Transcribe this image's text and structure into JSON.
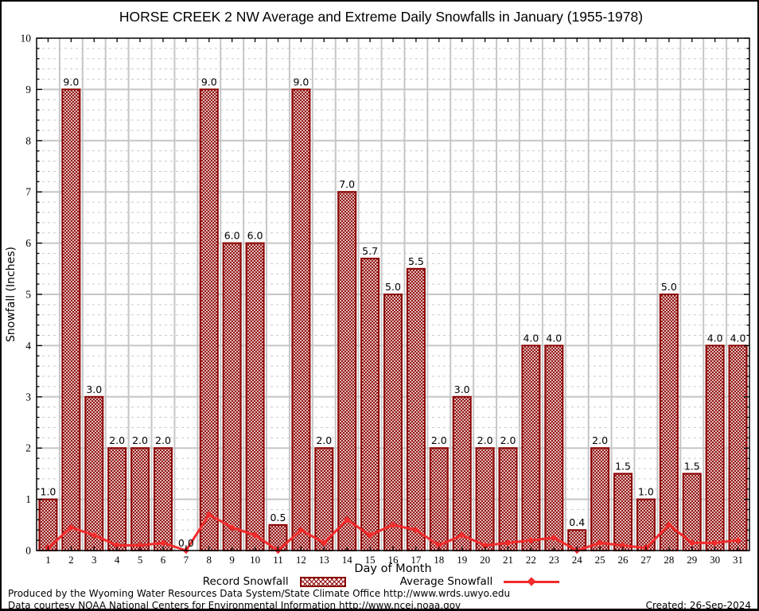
{
  "title": "HORSE CREEK 2 NW Average and Extreme Daily Snowfalls in January (1955-1978)",
  "chart_data": {
    "type": "bar",
    "title": "HORSE CREEK 2 NW Average and Extreme Daily Snowfalls in January (1955-1978)",
    "xlabel": "Day of Month",
    "ylabel": "Snowfall (Inches)",
    "ylim": [
      0,
      10
    ],
    "y_major_step": 1,
    "y_minor_step": 0.2,
    "grid": true,
    "legend_position": "bottom",
    "categories": [
      1,
      2,
      3,
      4,
      5,
      6,
      7,
      8,
      9,
      10,
      11,
      12,
      13,
      14,
      15,
      16,
      17,
      18,
      19,
      20,
      21,
      22,
      23,
      24,
      25,
      26,
      27,
      28,
      29,
      30,
      31
    ],
    "series": [
      {
        "name": "Record Snowfall",
        "type": "bar",
        "values": [
          1.0,
          9.0,
          3.0,
          2.0,
          2.0,
          2.0,
          0.0,
          9.0,
          6.0,
          6.0,
          0.5,
          9.0,
          2.0,
          7.0,
          5.7,
          5.0,
          5.5,
          2.0,
          3.0,
          2.0,
          2.0,
          4.0,
          4.0,
          0.4,
          2.0,
          1.5,
          1.0,
          5.0,
          1.5,
          4.0,
          4.0
        ],
        "data_labels_visible": true
      },
      {
        "name": "Average Snowfall",
        "type": "line",
        "values": [
          0.05,
          0.45,
          0.3,
          0.1,
          0.1,
          0.15,
          0.0,
          0.7,
          0.45,
          0.3,
          0.0,
          0.4,
          0.15,
          0.6,
          0.3,
          0.5,
          0.4,
          0.1,
          0.3,
          0.1,
          0.15,
          0.2,
          0.25,
          0.0,
          0.15,
          0.1,
          0.05,
          0.5,
          0.15,
          0.15,
          0.2
        ]
      }
    ],
    "colors": {
      "bar_edge": "#8b0000",
      "bar_hatch": "#8b0000",
      "bar_fill_bg": "#ffffff",
      "line": "#f22b2b",
      "grid_major": "#c6c6c6",
      "grid_minor": "#c9c9c9",
      "frame": "#000000"
    }
  },
  "legend": {
    "record_label": "Record Snowfall",
    "average_label": "Average Snowfall"
  },
  "footer": {
    "line1": "Produced by the Wyoming Water Resources Data System/State Climate Office http://www.wrds.uwyo.edu",
    "line2": "Data courtesy NOAA National Centers for Environmental Information http://www.ncei.noaa.gov",
    "created": "Created: 26-Sep-2024"
  }
}
